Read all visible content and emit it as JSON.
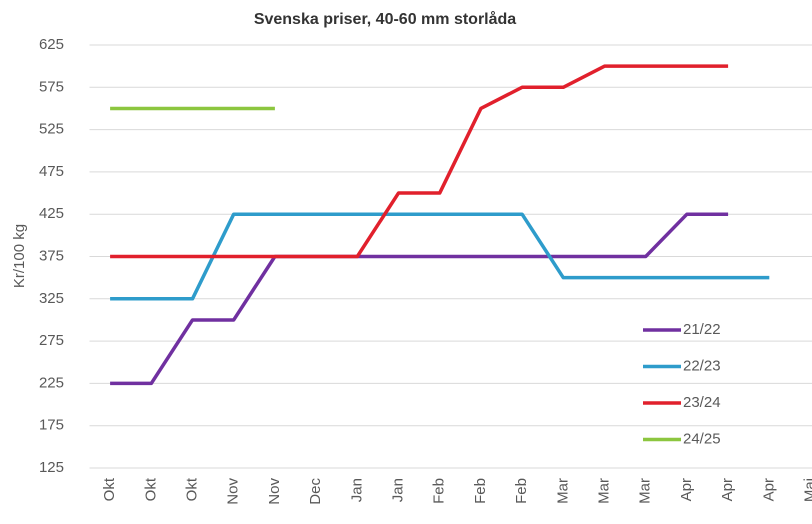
{
  "chart_data": {
    "type": "line",
    "title": "Svenska priser, 40-60 mm storlåda",
    "y_label": "Kr/100 kg",
    "categories": [
      "Okt",
      "Okt",
      "Okt",
      "Nov",
      "Nov",
      "Dec",
      "Jan",
      "Jan",
      "Feb",
      "Feb",
      "Feb",
      "Mar",
      "Mar",
      "Mar",
      "Apr",
      "Apr",
      "Apr",
      "Mai"
    ],
    "series": [
      {
        "name": "21/22",
        "color": "#7030a0",
        "values": [
          225,
          225,
          300,
          300,
          375,
          375,
          375,
          375,
          375,
          375,
          375,
          375,
          375,
          375,
          425,
          425,
          null,
          null
        ]
      },
      {
        "name": "22/23",
        "color": "#2e9ccb",
        "values": [
          325,
          325,
          325,
          425,
          425,
          425,
          425,
          425,
          425,
          425,
          425,
          350,
          350,
          350,
          350,
          350,
          350,
          null
        ]
      },
      {
        "name": "23/24",
        "color": "#e1202c",
        "values": [
          375,
          375,
          375,
          375,
          375,
          375,
          375,
          450,
          450,
          550,
          575,
          575,
          600,
          600,
          600,
          600,
          null,
          null
        ]
      },
      {
        "name": "24/25",
        "color": "#8cc63f",
        "values": [
          550,
          550,
          550,
          550,
          550,
          null,
          null,
          null,
          null,
          null,
          null,
          null,
          null,
          null,
          null,
          null,
          null,
          null
        ]
      }
    ],
    "ylim": [
      125,
      625
    ],
    "yticks": [
      125,
      175,
      225,
      275,
      325,
      375,
      425,
      475,
      525,
      575,
      625
    ],
    "grid": true,
    "legend": "right"
  }
}
